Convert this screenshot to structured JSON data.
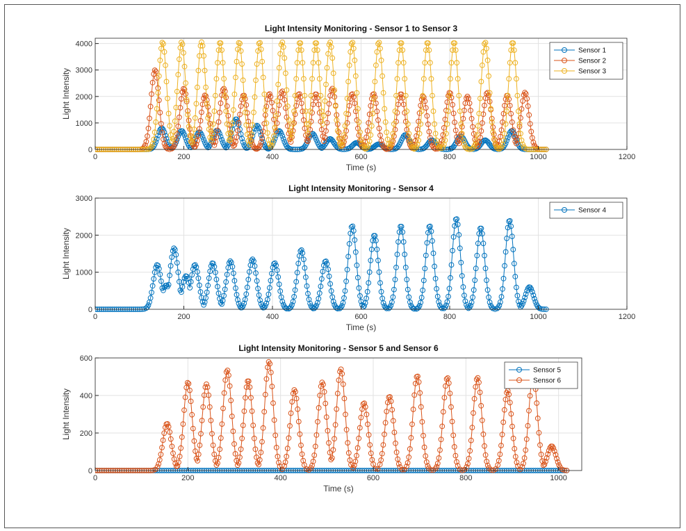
{
  "chart_data": [
    {
      "type": "line",
      "title": "Light Intensity Monitoring - Sensor 1 to Sensor 3",
      "xlabel": "Time (s)",
      "ylabel": "Light Intensity",
      "xlim": [
        0,
        1200
      ],
      "ylim": [
        0,
        4200
      ],
      "xticks": [
        0,
        200,
        400,
        600,
        800,
        1000,
        1200
      ],
      "yticks": [
        0,
        1000,
        2000,
        3000,
        4000
      ],
      "grid": true,
      "legend": "top-right",
      "marker": "circle",
      "series": [
        {
          "name": "Sensor 1",
          "color": "#0072BD",
          "peaks": [
            [
              150,
              800
            ],
            [
              195,
              700
            ],
            [
              235,
              650
            ],
            [
              275,
              720
            ],
            [
              318,
              1150
            ],
            [
              365,
              900
            ],
            [
              415,
              700
            ],
            [
              490,
              600
            ],
            [
              530,
              400
            ],
            [
              590,
              250
            ],
            [
              640,
              200
            ],
            [
              700,
              550
            ],
            [
              760,
              350
            ],
            [
              825,
              500
            ],
            [
              880,
              350
            ],
            [
              940,
              700
            ]
          ]
        },
        {
          "name": "Sensor 2",
          "color": "#D95319",
          "peaks": [
            [
              135,
              3000
            ],
            [
              200,
              2300
            ],
            [
              248,
              2050
            ],
            [
              290,
              2300
            ],
            [
              335,
              2050
            ],
            [
              393,
              2100
            ],
            [
              422,
              2200
            ],
            [
              460,
              2100
            ],
            [
              498,
              2100
            ],
            [
              535,
              2300
            ],
            [
              580,
              2100
            ],
            [
              628,
              2100
            ],
            [
              690,
              2100
            ],
            [
              740,
              2000
            ],
            [
              800,
              2150
            ],
            [
              840,
              2000
            ],
            [
              885,
              2150
            ],
            [
              930,
              2050
            ],
            [
              970,
              2150
            ]
          ]
        },
        {
          "name": "Sensor 3",
          "color": "#EDB120",
          "peaks": [
            [
              152,
              4050
            ],
            [
              195,
              4050
            ],
            [
              240,
              4050
            ],
            [
              282,
              4050
            ],
            [
              325,
              4050
            ],
            [
              371,
              4050
            ],
            [
              422,
              4050
            ],
            [
              462,
              4050
            ],
            [
              498,
              4050
            ],
            [
              530,
              4050
            ],
            [
              580,
              4050
            ],
            [
              640,
              4050
            ],
            [
              690,
              4050
            ],
            [
              750,
              4050
            ],
            [
              810,
              4050
            ],
            [
              880,
              4050
            ],
            [
              942,
              4050
            ]
          ]
        }
      ]
    },
    {
      "type": "line",
      "title": "Light Intensity Monitoring - Sensor 4",
      "xlabel": "Time (s)",
      "ylabel": "Light Intensity",
      "xlim": [
        0,
        1200
      ],
      "ylim": [
        0,
        3000
      ],
      "xticks": [
        0,
        200,
        400,
        600,
        800,
        1000,
        1200
      ],
      "yticks": [
        0,
        1000,
        2000,
        3000
      ],
      "grid": true,
      "legend": "top-right",
      "marker": "circle",
      "series": [
        {
          "name": "Sensor 4",
          "color": "#0072BD",
          "peaks": [
            [
              140,
              1200
            ],
            [
              160,
              650
            ],
            [
              178,
              1650
            ],
            [
              205,
              900
            ],
            [
              225,
              1200
            ],
            [
              265,
              1250
            ],
            [
              305,
              1300
            ],
            [
              355,
              1350
            ],
            [
              405,
              1250
            ],
            [
              465,
              1600
            ],
            [
              520,
              1300
            ],
            [
              580,
              2250
            ],
            [
              630,
              2000
            ],
            [
              690,
              2250
            ],
            [
              755,
              2250
            ],
            [
              815,
              2450
            ],
            [
              870,
              2200
            ],
            [
              935,
              2400
            ],
            [
              980,
              600
            ]
          ]
        }
      ]
    },
    {
      "type": "line",
      "title": "Light Intensity Monitoring - Sensor 5 and Sensor 6",
      "xlabel": "Time (s)",
      "ylabel": "Light Intensity",
      "xlim": [
        0,
        1050
      ],
      "ylim": [
        0,
        600
      ],
      "xticks": [
        0,
        200,
        400,
        600,
        800,
        1000
      ],
      "yticks": [
        0,
        200,
        400,
        600
      ],
      "grid": true,
      "legend": "top-right",
      "marker": "circle",
      "series": [
        {
          "name": "Sensor 5",
          "color": "#0072BD",
          "values_constant": 0,
          "x_range": [
            0,
            1020
          ]
        },
        {
          "name": "Sensor 6",
          "color": "#D95319",
          "peaks": [
            [
              155,
              250
            ],
            [
              200,
              470
            ],
            [
              240,
              460
            ],
            [
              285,
              535
            ],
            [
              330,
              480
            ],
            [
              375,
              580
            ],
            [
              430,
              430
            ],
            [
              490,
              470
            ],
            [
              530,
              540
            ],
            [
              580,
              360
            ],
            [
              635,
              395
            ],
            [
              695,
              505
            ],
            [
              760,
              495
            ],
            [
              825,
              495
            ],
            [
              890,
              425
            ],
            [
              945,
              515
            ],
            [
              985,
              130
            ]
          ]
        }
      ]
    }
  ]
}
